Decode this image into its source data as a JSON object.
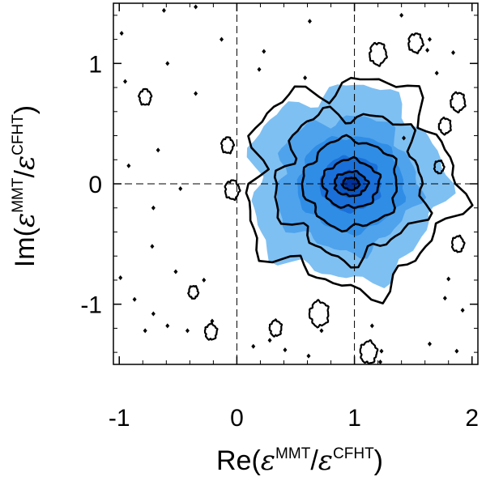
{
  "chart_data": {
    "type": "contour",
    "xlabel": {
      "prefix": "Re(",
      "sym": "ε",
      "num": "MMT",
      "slash": "/",
      "den": "CFHT",
      "suffix": ")"
    },
    "ylabel": {
      "prefix": "Im(",
      "sym": "ε",
      "num": "MMT",
      "slash": "/",
      "den": "CFHT",
      "suffix": ")"
    },
    "xlim": [
      -1.05,
      2.05
    ],
    "ylim": [
      -1.5,
      1.5
    ],
    "xticks": [
      -1,
      0,
      1,
      2
    ],
    "xtick_labels": [
      "-1",
      "0",
      "1",
      "2"
    ],
    "yticks": [
      -1,
      0,
      1
    ],
    "ytick_labels": [
      "-1",
      "0",
      "1"
    ],
    "reference_lines": {
      "x": [
        0,
        1
      ],
      "y": [
        0
      ]
    },
    "peak": {
      "x": 0.97,
      "y": 0.0
    },
    "filled_levels": [
      {
        "name": "level-1",
        "sx": 0.82,
        "sy": 0.8,
        "color": "#7fc0f2"
      },
      {
        "name": "level-2",
        "sx": 0.6,
        "sy": 0.56,
        "color": "#4fa3ec"
      },
      {
        "name": "level-3",
        "sx": 0.45,
        "sy": 0.4,
        "color": "#2f8de6"
      },
      {
        "name": "level-4",
        "sx": 0.26,
        "sy": 0.23,
        "color": "#1a6fd8"
      },
      {
        "name": "level-5",
        "sx": 0.13,
        "sy": 0.11,
        "color": "#0b56c2"
      },
      {
        "name": "level-6",
        "sx": 0.06,
        "sy": 0.04,
        "color": "#00309a"
      }
    ],
    "contour_lines": [
      {
        "name": "contour-1",
        "sx": 0.88,
        "sy": 0.86
      },
      {
        "name": "contour-2",
        "sx": 0.62,
        "sy": 0.6
      },
      {
        "name": "contour-3",
        "sx": 0.4,
        "sy": 0.37
      },
      {
        "name": "contour-4",
        "sx": 0.24,
        "sy": 0.2
      },
      {
        "name": "contour-5",
        "sx": 0.14,
        "sy": 0.1
      },
      {
        "name": "contour-6",
        "sx": 0.07,
        "sy": 0.05
      }
    ],
    "small_contours": [
      {
        "x": -0.78,
        "y": 0.72,
        "r": 0.05
      },
      {
        "x": -0.08,
        "y": 0.32,
        "r": 0.05
      },
      {
        "x": -0.04,
        "y": -0.05,
        "r": 0.06
      },
      {
        "x": 1.52,
        "y": 1.17,
        "r": 0.06
      },
      {
        "x": 1.2,
        "y": 1.08,
        "r": 0.07
      },
      {
        "x": 1.88,
        "y": 0.68,
        "r": 0.06
      },
      {
        "x": 1.77,
        "y": 0.48,
        "r": 0.05
      },
      {
        "x": 0.7,
        "y": -1.08,
        "r": 0.08
      },
      {
        "x": 0.33,
        "y": -1.2,
        "r": 0.05
      },
      {
        "x": -0.22,
        "y": -1.23,
        "r": 0.05
      },
      {
        "x": 1.12,
        "y": -1.4,
        "r": 0.07
      },
      {
        "x": 1.88,
        "y": -0.5,
        "r": 0.05
      },
      {
        "x": 1.72,
        "y": 0.14,
        "r": 0.04
      },
      {
        "x": -0.37,
        "y": -0.9,
        "r": 0.04
      }
    ],
    "scatter_points": [
      [
        -0.62,
        1.44
      ],
      [
        -0.35,
        1.47
      ],
      [
        0.62,
        1.35
      ],
      [
        -0.98,
        1.25
      ],
      [
        -0.59,
        1.0
      ],
      [
        -0.95,
        0.85
      ],
      [
        0.19,
        0.95
      ],
      [
        0.23,
        1.1
      ],
      [
        1.4,
        1.4
      ],
      [
        1.64,
        1.2
      ],
      [
        1.62,
        1.11
      ],
      [
        1.84,
        1.09
      ],
      [
        1.7,
        0.92
      ],
      [
        -0.35,
        0.75
      ],
      [
        -0.67,
        0.28
      ],
      [
        -0.92,
        0.15
      ],
      [
        -0.71,
        -0.2
      ],
      [
        -0.48,
        -0.04
      ],
      [
        -0.72,
        -0.52
      ],
      [
        -0.52,
        -0.73
      ],
      [
        -0.99,
        -0.78
      ],
      [
        -0.28,
        -0.8
      ],
      [
        -0.87,
        -0.96
      ],
      [
        -0.71,
        -1.08
      ],
      [
        -0.78,
        -1.22
      ],
      [
        -0.59,
        -1.18
      ],
      [
        -0.42,
        -1.22
      ],
      [
        -0.21,
        -1.14
      ],
      [
        0.28,
        -1.3
      ],
      [
        0.14,
        -1.35
      ],
      [
        0.41,
        -1.38
      ],
      [
        0.61,
        -1.43
      ],
      [
        0.72,
        -1.22
      ],
      [
        1.23,
        -1.39
      ],
      [
        1.22,
        -1.48
      ],
      [
        1.64,
        -1.33
      ],
      [
        1.87,
        -1.39
      ],
      [
        1.92,
        -1.05
      ],
      [
        1.77,
        -0.95
      ],
      [
        1.8,
        -0.79
      ],
      [
        1.42,
        0.38
      ],
      [
        1.15,
        -1.18
      ],
      [
        0.58,
        0.88
      ],
      [
        -0.13,
        1.2
      ]
    ]
  }
}
